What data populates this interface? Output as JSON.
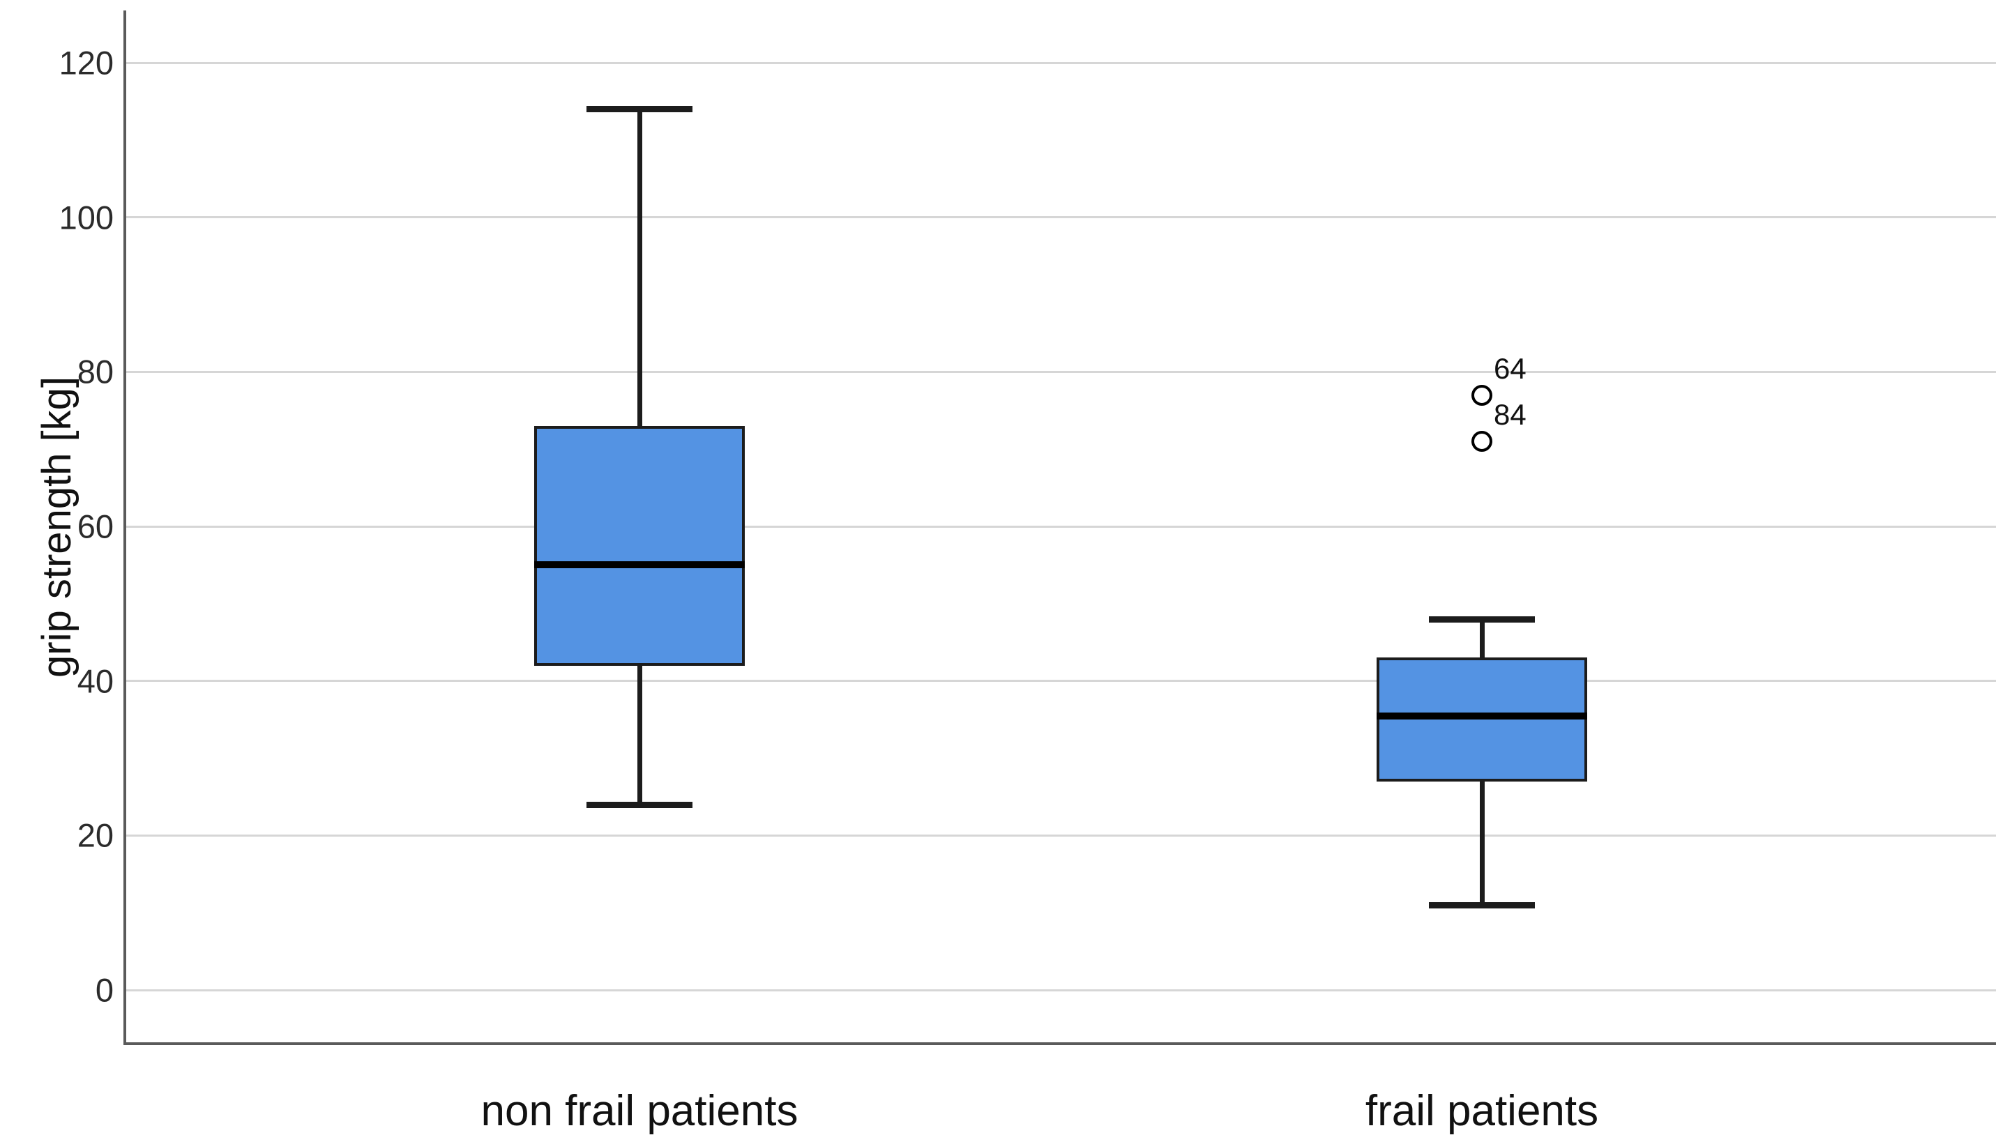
{
  "chart_data": {
    "type": "boxplot",
    "title": "",
    "xlabel": "",
    "ylabel": "grip strength [kg]",
    "categories": [
      "non frail patients",
      "frail patients"
    ],
    "yticks": [
      0,
      20,
      40,
      60,
      80,
      100,
      120
    ],
    "ylim": [
      -7,
      127
    ],
    "grid": "horizontal",
    "series": [
      {
        "name": "non frail patients",
        "whisker_low": 24,
        "q1": 42,
        "median": 55,
        "q3": 73,
        "whisker_high": 114,
        "outliers": []
      },
      {
        "name": "frail patients",
        "whisker_low": 11,
        "q1": 27,
        "median": 35.5,
        "q3": 43,
        "whisker_high": 48,
        "outliers": [
          {
            "value": 77,
            "label": "64"
          },
          {
            "value": 71,
            "label": "84"
          }
        ]
      }
    ],
    "colors": {
      "box_fill": "#5493e3",
      "box_border": "#1c1c1c",
      "median": "#000000",
      "whisker": "#1c1c1c",
      "gridline": "#d6d6d6",
      "axis": "#5a5a5a",
      "tick_label": "#2b2b2b",
      "text": "#111111"
    }
  }
}
